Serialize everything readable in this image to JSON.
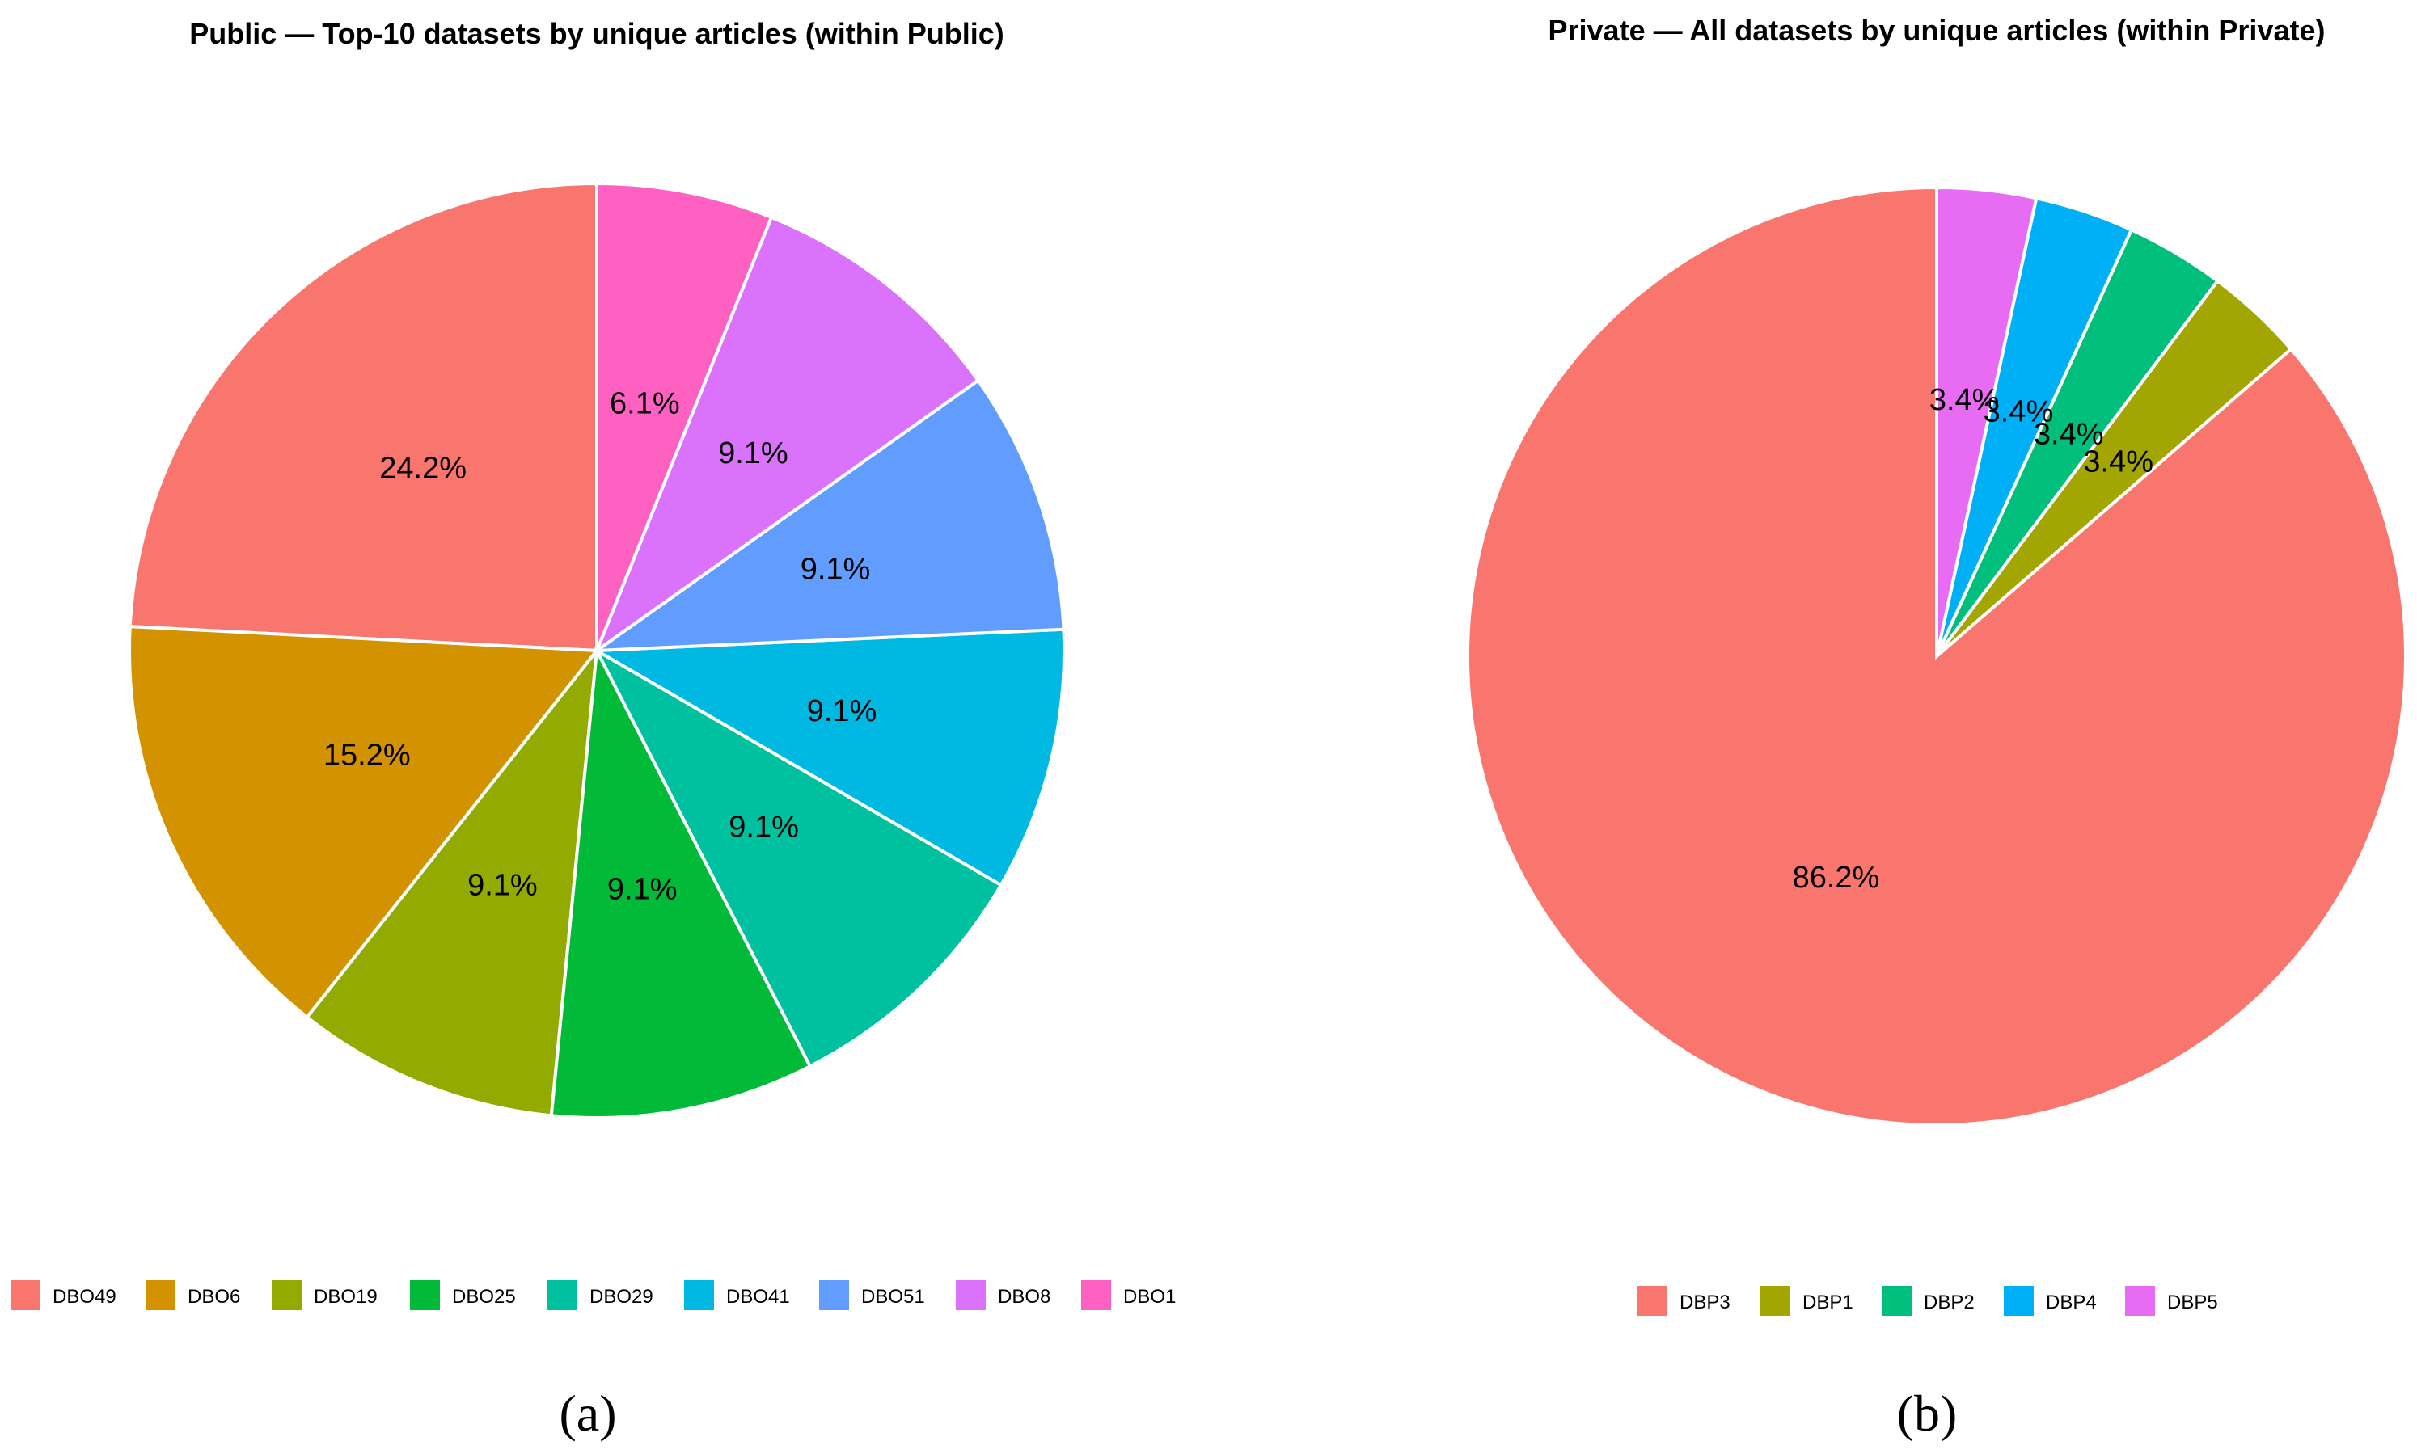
{
  "chart_data": [
    {
      "type": "pie",
      "panel_label": "(a)",
      "title": "Public — Top-10 datasets by unique articles (within Public)",
      "legend_position": "bottom",
      "slices": [
        {
          "name": "DBO49",
          "value": 24.2,
          "label": "24.2%",
          "color": "#F8766D"
        },
        {
          "name": "DBO6",
          "value": 15.2,
          "label": "15.2%",
          "color": "#D39200"
        },
        {
          "name": "DBO19",
          "value": 9.1,
          "label": "9.1%",
          "color": "#93AA00"
        },
        {
          "name": "DBO25",
          "value": 9.1,
          "label": "9.1%",
          "color": "#00BA38"
        },
        {
          "name": "DBO29",
          "value": 9.1,
          "label": "9.1%",
          "color": "#00C19F"
        },
        {
          "name": "DBO41",
          "value": 9.1,
          "label": "9.1%",
          "color": "#00B9E3"
        },
        {
          "name": "DBO51",
          "value": 9.1,
          "label": "9.1%",
          "color": "#619CFF"
        },
        {
          "name": "DBO8",
          "value": 9.1,
          "label": "9.1%",
          "color": "#DB72FB"
        },
        {
          "name": "DBO1",
          "value": 6.1,
          "label": "6.1%",
          "color": "#FF61C3"
        }
      ]
    },
    {
      "type": "pie",
      "panel_label": "(b)",
      "title": "Private — All datasets by unique articles (within Private)",
      "legend_position": "bottom",
      "slices": [
        {
          "name": "DBP3",
          "value": 86.2,
          "label": "86.2%",
          "color": "#F8766D"
        },
        {
          "name": "DBP1",
          "value": 3.4,
          "label": "3.4%",
          "color": "#A3A500"
        },
        {
          "name": "DBP2",
          "value": 3.4,
          "label": "3.4%",
          "color": "#00BF7D"
        },
        {
          "name": "DBP4",
          "value": 3.4,
          "label": "3.4%",
          "color": "#00B0F6"
        },
        {
          "name": "DBP5",
          "value": 3.4,
          "label": "3.4%",
          "color": "#E76BF3"
        }
      ]
    }
  ]
}
